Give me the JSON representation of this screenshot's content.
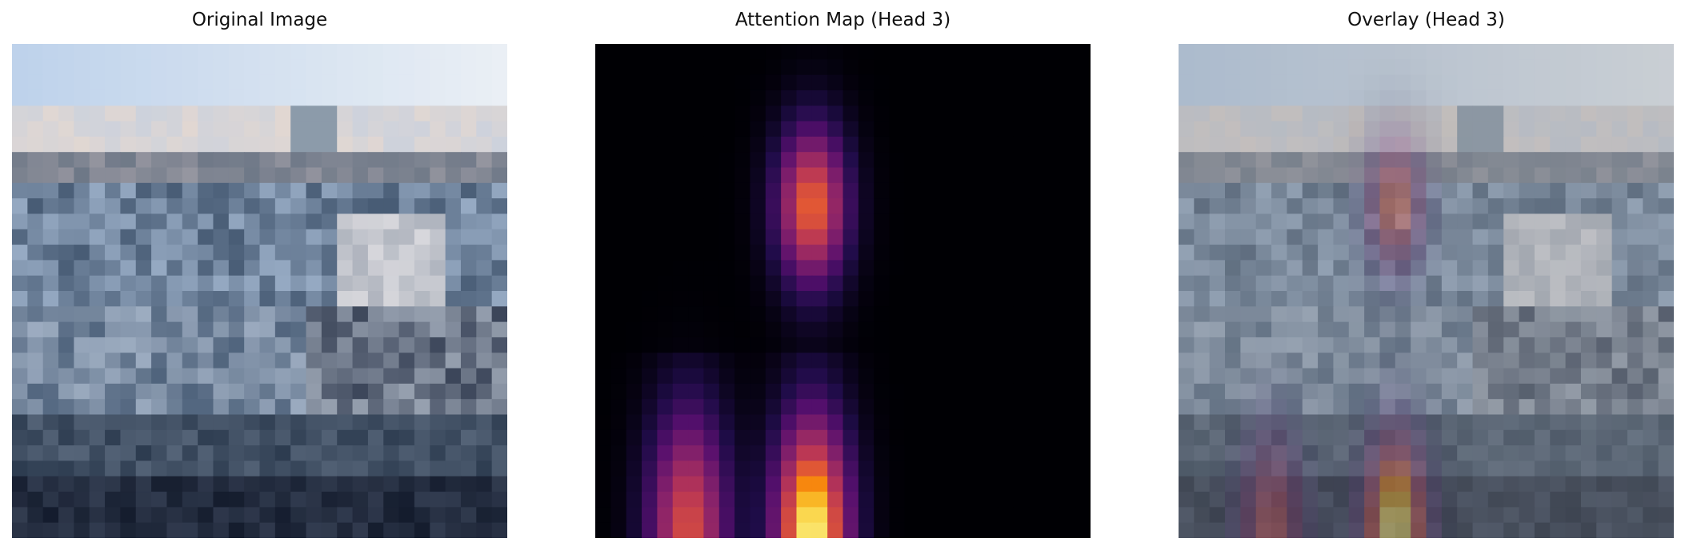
{
  "figure": {
    "panels": [
      {
        "title": "Original Image",
        "image_kind": "pixelated-photo-ship-harbor"
      },
      {
        "title": "Attention Map (Head 3)",
        "image_kind": "attention-heatmap",
        "colormap": "inferno"
      },
      {
        "title": "Overlay (Head 3)",
        "image_kind": "photo-with-attention-overlay"
      }
    ]
  },
  "colors": {
    "background": "#ffffff",
    "heatmap_low": "#000004",
    "heatmap_mid": "#b83655",
    "heatmap_high": "#fcffa4"
  }
}
